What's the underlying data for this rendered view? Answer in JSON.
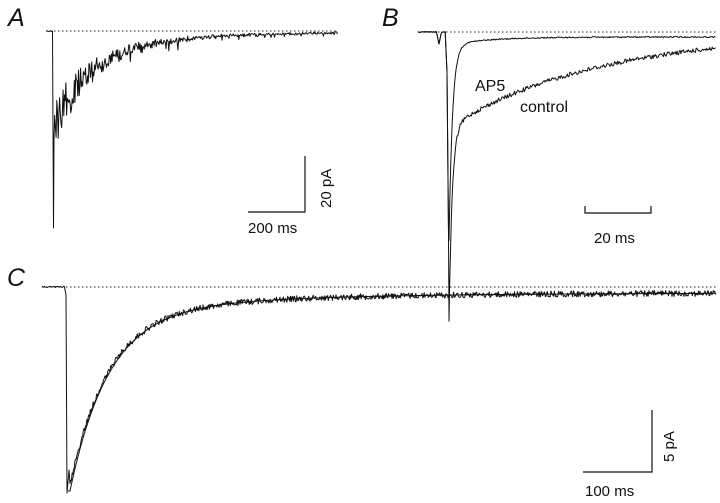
{
  "chart_data": [
    {
      "type": "line",
      "panel": "A",
      "xlabel": "",
      "ylabel": "",
      "baseline_pA": 0,
      "duration_ms": 1000,
      "peak_pA": -65,
      "scale_bars": {
        "time_ms": 200,
        "amplitude_pA": 20,
        "time_label": "200 ms",
        "amplitude_label": "20 pA"
      }
    },
    {
      "type": "line",
      "panel": "B",
      "xlabel": "",
      "ylabel": "",
      "duration_ms": 90,
      "series": [
        {
          "name": "AP5",
          "peak_pA": -65
        },
        {
          "name": "control",
          "peak_pA": -65
        }
      ],
      "scale_bars": {
        "time_ms": 20,
        "time_label": "20 ms"
      }
    },
    {
      "type": "line",
      "panel": "C",
      "xlabel": "",
      "ylabel": "",
      "duration_ms": 1000,
      "peak_pA": -18,
      "series": [
        {
          "name": "",
          "kind": "averaged trace"
        },
        {
          "name": "",
          "kind": "exponential fit"
        }
      ],
      "scale_bars": {
        "time_ms": 100,
        "amplitude_pA": 5,
        "time_label": "100 ms",
        "amplitude_label": "5 pA"
      }
    }
  ],
  "labels": {
    "panel_a": "A",
    "panel_b": "B",
    "panel_c": "C",
    "ap5": "AP5",
    "control": "control",
    "a_time": "200 ms",
    "a_amp": "20 pA",
    "b_time": "20 ms",
    "c_time": "100 ms",
    "c_amp": "5 pA"
  }
}
